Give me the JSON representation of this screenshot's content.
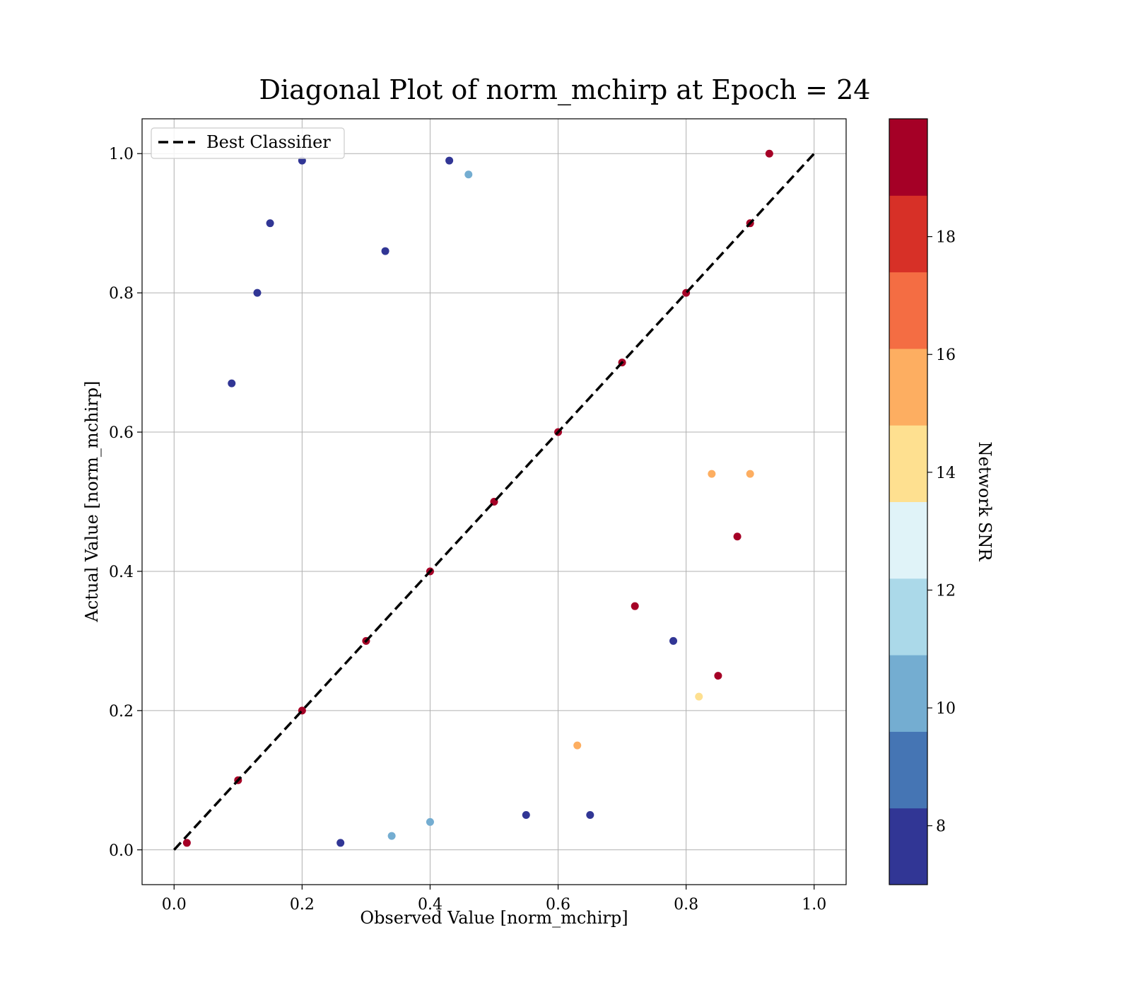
{
  "chart_data": {
    "type": "scatter",
    "title": "Diagonal Plot of norm_mchirp at Epoch = 24",
    "xlabel": "Observed Value [norm_mchirp]",
    "ylabel": "Actual Value [norm_mchirp]",
    "xlim": [
      -0.05,
      1.05
    ],
    "ylim": [
      -0.05,
      1.05
    ],
    "xticks": [
      "0.0",
      "0.2",
      "0.4",
      "0.6",
      "0.8",
      "1.0"
    ],
    "yticks": [
      "0.0",
      "0.2",
      "0.4",
      "0.6",
      "0.8",
      "1.0"
    ],
    "grid": true,
    "legend": {
      "position": "top-left",
      "entries": [
        "Best Classifier"
      ]
    },
    "reference_line": {
      "name": "Best Classifier",
      "style": "dashed",
      "color": "#000000",
      "x": [
        0,
        1
      ],
      "y": [
        0,
        1
      ]
    },
    "colorbar": {
      "label": "Network SNR",
      "range": [
        7,
        20
      ],
      "ticks": [
        "8",
        "10",
        "12",
        "14",
        "16",
        "18"
      ],
      "colors": [
        "#313695",
        "#4575b4",
        "#74add1",
        "#abd9e9",
        "#e0f3f8",
        "#fee090",
        "#fdae61",
        "#f46d43",
        "#d73027",
        "#a50026"
      ]
    },
    "series": [
      {
        "snr": 19.5,
        "x": [
          0.02,
          0.1,
          0.2,
          0.3,
          0.4,
          0.5,
          0.6,
          0.7,
          0.8,
          0.9,
          0.93,
          0.85,
          0.72,
          0.88
        ],
        "y": [
          0.01,
          0.1,
          0.2,
          0.3,
          0.4,
          0.5,
          0.6,
          0.7,
          0.8,
          0.9,
          1.0,
          0.25,
          0.35,
          0.45
        ]
      },
      {
        "snr": 7.5,
        "x": [
          0.2,
          0.43,
          0.09,
          0.55,
          0.65,
          0.78,
          0.26,
          0.13,
          0.33,
          0.15
        ],
        "y": [
          0.99,
          0.99,
          0.67,
          0.05,
          0.05,
          0.3,
          0.01,
          0.8,
          0.86,
          0.9
        ]
      },
      {
        "snr": 10.5,
        "x": [
          0.46,
          0.4,
          0.34
        ],
        "y": [
          0.97,
          0.04,
          0.02
        ]
      },
      {
        "snr": 15.5,
        "x": [
          0.63,
          0.9,
          0.84
        ],
        "y": [
          0.15,
          0.54,
          0.54
        ]
      },
      {
        "snr": 13.5,
        "x": [
          0.82
        ],
        "y": [
          0.22
        ]
      }
    ]
  }
}
